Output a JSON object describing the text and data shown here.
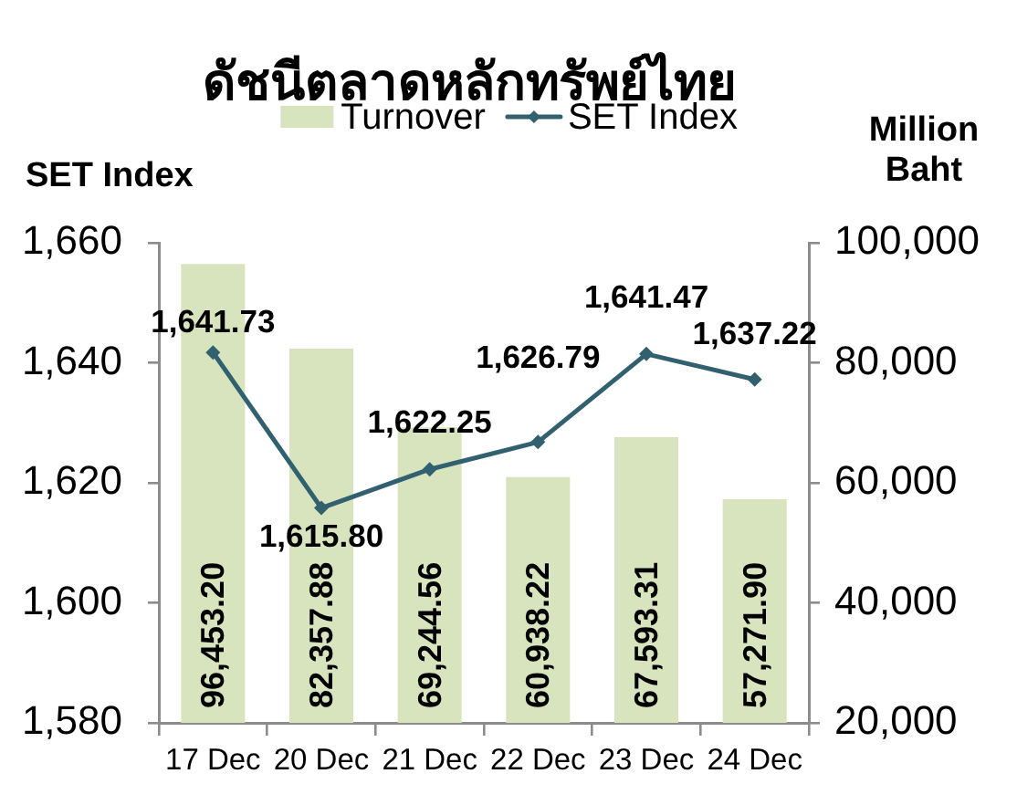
{
  "chart_data": {
    "type": "bar",
    "title": "ดัชนีตลาดหลักทรัพย์ไทย",
    "ylabel": "SET Index",
    "y2label": "Million Baht",
    "categories": [
      "17 Dec",
      "20 Dec",
      "21 Dec",
      "22 Dec",
      "23 Dec",
      "24 Dec"
    ],
    "series": [
      {
        "name": "Turnover",
        "axis": "y2",
        "color": "#d7e4bd",
        "values": [
          96453.2,
          82357.88,
          69244.56,
          60938.22,
          67593.31,
          57271.9
        ],
        "value_labels": [
          "96,453.20",
          "82,357.88",
          "69,244.56",
          "60,938.22",
          "67,593.31",
          "57,271.90"
        ]
      },
      {
        "name": "SET Index",
        "type": "line",
        "axis": "y",
        "color": "#31606f",
        "values": [
          1641.73,
          1615.8,
          1622.25,
          1626.79,
          1641.47,
          1637.22
        ],
        "value_labels": [
          "1,641.73",
          "1,615.80",
          "1,622.25",
          "1,626.79",
          "1,641.47",
          "1,637.22"
        ]
      }
    ],
    "ylim": [
      1580,
      1660
    ],
    "yticks": [
      {
        "value": 1580,
        "label": "1,580"
      },
      {
        "value": 1600,
        "label": "1,600"
      },
      {
        "value": 1620,
        "label": "1,620"
      },
      {
        "value": 1640,
        "label": "1,640"
      },
      {
        "value": 1660,
        "label": "1,660"
      }
    ],
    "y2lim": [
      20000,
      100000
    ],
    "y2ticks": [
      {
        "value": 20000,
        "label": "20,000"
      },
      {
        "value": 40000,
        "label": "40,000"
      },
      {
        "value": 60000,
        "label": "60,000"
      },
      {
        "value": 80000,
        "label": "80,000"
      },
      {
        "value": 100000,
        "label": "100,000"
      }
    ],
    "legend": "top",
    "grid": false,
    "marker": "diamond"
  }
}
